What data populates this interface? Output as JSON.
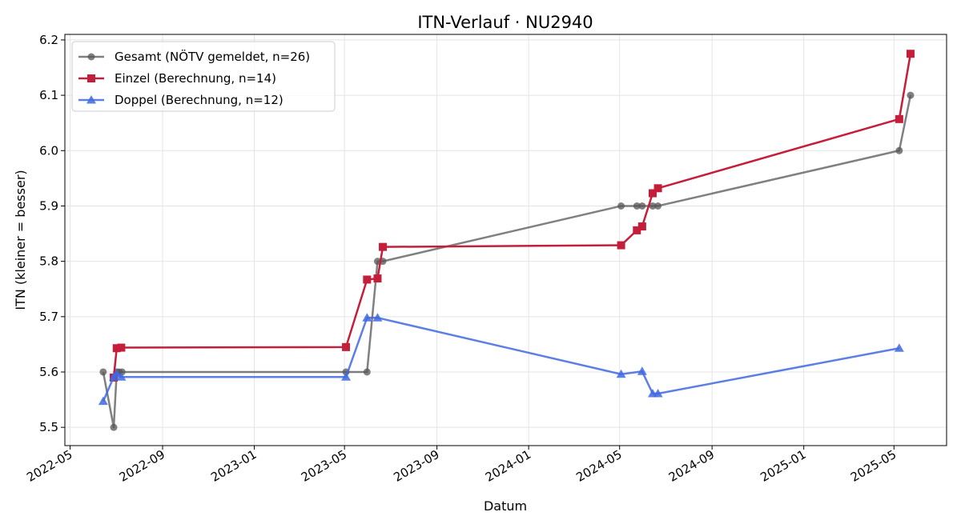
{
  "chart_data": {
    "type": "line",
    "title": "ITN-Verlauf · NU2940",
    "xlabel": "Datum",
    "ylabel": "ITN  (kleiner = besser)",
    "x_axis_type": "date",
    "xlim": [
      "2022-04-24",
      "2025-07-10"
    ],
    "ylim": [
      5.467,
      6.21
    ],
    "x_ticks": [
      "2022-05-01",
      "2022-09-01",
      "2023-01-01",
      "2023-05-01",
      "2023-09-01",
      "2024-01-01",
      "2024-05-01",
      "2024-09-01",
      "2025-01-01",
      "2025-05-01"
    ],
    "x_tick_labels": [
      "2022-05",
      "2022-09",
      "2023-01",
      "2023-05",
      "2023-09",
      "2024-01",
      "2024-05",
      "2024-09",
      "2025-01",
      "2025-05"
    ],
    "y_ticks": [
      5.5,
      5.6,
      5.7,
      5.8,
      5.9,
      6.0,
      6.1,
      6.2
    ],
    "y_tick_labels": [
      "5.5",
      "5.6",
      "5.7",
      "5.8",
      "5.9",
      "6.0",
      "6.1",
      "6.2"
    ],
    "grid": true,
    "legend_position": "top-left",
    "series": [
      {
        "name": "Gesamt (NÖTV gemeldet, n=26)",
        "color": "#555555",
        "marker": "circle",
        "points": [
          {
            "x": "2022-06-14",
            "y": 5.6
          },
          {
            "x": "2022-06-28",
            "y": 5.5
          },
          {
            "x": "2022-07-02",
            "y": 5.6
          },
          {
            "x": "2022-07-05",
            "y": 5.6
          },
          {
            "x": "2022-07-09",
            "y": 5.6
          },
          {
            "x": "2023-05-03",
            "y": 5.6
          },
          {
            "x": "2023-05-31",
            "y": 5.6
          },
          {
            "x": "2023-06-14",
            "y": 5.8
          },
          {
            "x": "2023-06-21",
            "y": 5.8
          },
          {
            "x": "2024-05-03",
            "y": 5.9
          },
          {
            "x": "2024-05-24",
            "y": 5.9
          },
          {
            "x": "2024-05-31",
            "y": 5.9
          },
          {
            "x": "2024-06-14",
            "y": 5.9
          },
          {
            "x": "2024-06-21",
            "y": 5.9
          },
          {
            "x": "2025-05-08",
            "y": 6.0
          },
          {
            "x": "2025-05-23",
            "y": 6.1
          }
        ]
      },
      {
        "name": "Einzel (Berechnung, n=14)",
        "color": "#c41e3a",
        "marker": "square",
        "points": [
          {
            "x": "2022-06-28",
            "y": 5.59
          },
          {
            "x": "2022-07-02",
            "y": 5.643
          },
          {
            "x": "2022-07-08",
            "y": 5.644
          },
          {
            "x": "2023-05-03",
            "y": 5.645
          },
          {
            "x": "2023-05-31",
            "y": 5.767
          },
          {
            "x": "2023-06-14",
            "y": 5.769
          },
          {
            "x": "2023-06-21",
            "y": 5.826
          },
          {
            "x": "2024-05-03",
            "y": 5.829
          },
          {
            "x": "2024-05-24",
            "y": 5.856
          },
          {
            "x": "2024-05-31",
            "y": 5.863
          },
          {
            "x": "2024-06-14",
            "y": 5.923
          },
          {
            "x": "2024-06-21",
            "y": 5.932
          },
          {
            "x": "2025-05-08",
            "y": 6.057
          },
          {
            "x": "2025-05-23",
            "y": 6.175
          }
        ]
      },
      {
        "name": "Doppel (Berechnung, n=12)",
        "color": "#4169e1",
        "marker": "triangle",
        "points": [
          {
            "x": "2022-06-14",
            "y": 5.547
          },
          {
            "x": "2022-06-28",
            "y": 5.591
          },
          {
            "x": "2022-07-02",
            "y": 5.597
          },
          {
            "x": "2022-07-08",
            "y": 5.591
          },
          {
            "x": "2023-05-03",
            "y": 5.591
          },
          {
            "x": "2023-05-31",
            "y": 5.698
          },
          {
            "x": "2023-06-14",
            "y": 5.698
          },
          {
            "x": "2024-05-03",
            "y": 5.596
          },
          {
            "x": "2024-05-31",
            "y": 5.601
          },
          {
            "x": "2024-06-14",
            "y": 5.561
          },
          {
            "x": "2024-06-21",
            "y": 5.561
          },
          {
            "x": "2025-05-08",
            "y": 5.643
          }
        ]
      }
    ]
  }
}
